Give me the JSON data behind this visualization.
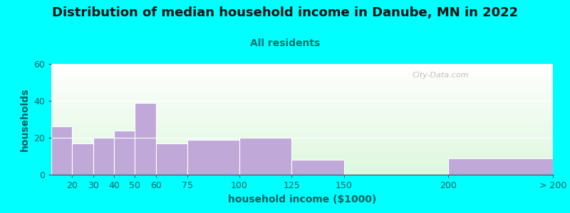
{
  "title": "Distribution of median household income in Danube, MN in 2022",
  "subtitle": "All residents",
  "xlabel": "household income ($1000)",
  "ylabel": "households",
  "bar_color": "#C0A8D8",
  "bar_edge_color": "#FFFFFF",
  "background_outer": "#00FFFF",
  "ylim": [
    0,
    60
  ],
  "yticks": [
    0,
    20,
    40,
    60
  ],
  "title_fontsize": 13,
  "subtitle_fontsize": 10,
  "label_fontsize": 10,
  "tick_fontsize": 9,
  "watermark": "City-Data.com",
  "title_color": "#111111",
  "subtitle_color": "#007070",
  "tick_color": "#006060",
  "label_color": "#006060",
  "bar_edges": [
    10,
    20,
    30,
    40,
    50,
    60,
    75,
    100,
    125,
    150,
    200,
    250
  ],
  "bar_labels": [
    "20",
    "30",
    "40",
    "50",
    "60",
    "75",
    "100",
    "125",
    "150",
    "200",
    "> 200"
  ],
  "values": [
    26,
    17,
    20,
    24,
    39,
    17,
    19,
    20,
    8,
    0,
    9
  ]
}
